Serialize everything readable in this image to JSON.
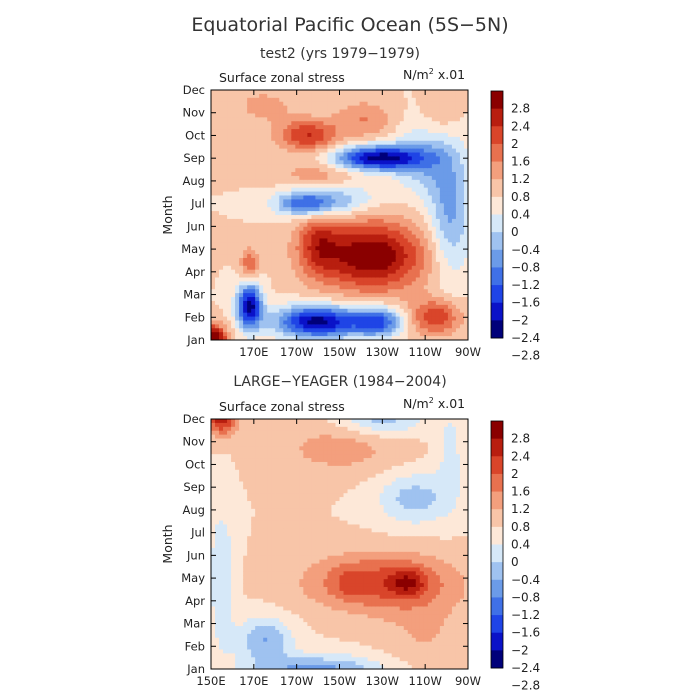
{
  "figure": {
    "title": "Equatorial Pacific Ocean (5S−5N)"
  },
  "chart_data": [
    {
      "type": "heatmap",
      "title": "test2 (yrs 1979−1979)",
      "variable_label": "Surface zonal stress",
      "units_prefix": "N/m",
      "units_exp": "2",
      "units_suffix": " x.01",
      "xlabel": "",
      "ylabel": "Month",
      "x_ticks": [
        "170E",
        "170W",
        "150W",
        "130W",
        "110W",
        "90W"
      ],
      "x_tick_values": [
        170,
        190,
        210,
        230,
        250,
        270
      ],
      "xlim": [
        150,
        270
      ],
      "y_ticks": [
        "Jan",
        "Feb",
        "Mar",
        "Apr",
        "May",
        "Jun",
        "Jul",
        "Aug",
        "Sep",
        "Oct",
        "Nov",
        "Dec"
      ],
      "ylim": [
        0,
        11
      ],
      "colorbar_levels": [
        "2.8",
        "2.4",
        "2",
        "1.6",
        "1.2",
        "0.8",
        "0.4",
        "0",
        "−0.4",
        "−0.8",
        "−1.2",
        "−1.6",
        "−2",
        "−2.4",
        "−2.8"
      ],
      "features": [
        {
          "lon": 150,
          "month": 0.0,
          "value": 3.0,
          "slon": 5,
          "smon": 0.45
        },
        {
          "lon": 168,
          "month": 1.5,
          "value": -3.0,
          "slon": 4,
          "smon": 0.7
        },
        {
          "lon": 200,
          "month": 0.8,
          "value": -3.0,
          "slon": 14,
          "smon": 0.5
        },
        {
          "lon": 228,
          "month": 0.8,
          "value": -2.0,
          "slon": 8,
          "smon": 0.45
        },
        {
          "lon": 255,
          "month": 1.0,
          "value": 1.6,
          "slon": 8,
          "smon": 0.55
        },
        {
          "lon": 168,
          "month": 3.3,
          "value": 1.2,
          "slon": 3,
          "smon": 0.5
        },
        {
          "lon": 225,
          "month": 3.7,
          "value": 2.4,
          "slon": 18,
          "smon": 1.1
        },
        {
          "lon": 200,
          "month": 4.3,
          "value": 1.2,
          "slon": 7,
          "smon": 1.0
        },
        {
          "lon": 195,
          "month": 6.0,
          "value": -2.2,
          "slon": 10,
          "smon": 0.4
        },
        {
          "lon": 215,
          "month": 6.2,
          "value": -0.8,
          "slon": 10,
          "smon": 0.5
        },
        {
          "lon": 262,
          "month": 5.5,
          "value": -1.3,
          "slon": 7,
          "smon": 2.0
        },
        {
          "lon": 250,
          "month": 8.0,
          "value": -1.0,
          "slon": 10,
          "smon": 1.2
        },
        {
          "lon": 228,
          "month": 8.0,
          "value": -3.0,
          "slon": 14,
          "smon": 0.38
        },
        {
          "lon": 195,
          "month": 9.0,
          "value": 1.6,
          "slon": 10,
          "smon": 0.5
        },
        {
          "lon": 222,
          "month": 9.7,
          "value": 0.8,
          "slon": 10,
          "smon": 0.6
        },
        {
          "lon": 200,
          "month": 7.3,
          "value": 0.6,
          "slon": 14,
          "smon": 0.4
        },
        {
          "lon": 175,
          "month": 10.3,
          "value": 0.6,
          "slon": 10,
          "smon": 0.5
        },
        {
          "lon": 257,
          "month": 9.8,
          "value": 0.5,
          "slon": 7,
          "smon": 0.8
        }
      ]
    },
    {
      "type": "heatmap",
      "title": "LARGE−YEAGER (1984−2004)",
      "variable_label": "Surface zonal stress",
      "units_prefix": "N/m",
      "units_exp": "2",
      "units_suffix": " x.01",
      "xlabel": "",
      "ylabel": "Month",
      "x_ticks": [
        "150E",
        "170E",
        "170W",
        "150W",
        "130W",
        "110W",
        "90W"
      ],
      "x_tick_values": [
        150,
        170,
        190,
        210,
        230,
        250,
        270
      ],
      "xlim": [
        150,
        270
      ],
      "y_ticks": [
        "Jan",
        "Feb",
        "Mar",
        "Apr",
        "May",
        "Jun",
        "Jul",
        "Aug",
        "Sep",
        "Oct",
        "Nov",
        "Dec"
      ],
      "ylim": [
        0,
        11
      ],
      "colorbar_levels": [
        "2.8",
        "2.4",
        "2",
        "1.6",
        "1.2",
        "0.8",
        "0.4",
        "0",
        "−0.4",
        "−0.8",
        "−1.2",
        "−1.6",
        "−2",
        "−2.4",
        "−2.8"
      ],
      "features": [
        {
          "lon": 155,
          "month": 11.0,
          "value": 1.8,
          "slon": 5,
          "smon": 0.5
        },
        {
          "lon": 230,
          "month": 11.0,
          "value": -1.0,
          "slon": 14,
          "smon": 0.5
        },
        {
          "lon": 230,
          "month": 3.8,
          "value": 1.4,
          "slon": 24,
          "smon": 0.9
        },
        {
          "lon": 242,
          "month": 3.8,
          "value": 0.9,
          "slon": 6,
          "smon": 0.45
        },
        {
          "lon": 215,
          "month": 3.8,
          "value": 0.4,
          "slon": 6,
          "smon": 0.5
        },
        {
          "lon": 210,
          "month": 9.7,
          "value": 0.6,
          "slon": 20,
          "smon": 0.8
        },
        {
          "lon": 245,
          "month": 7.5,
          "value": -1.0,
          "slon": 12,
          "smon": 0.8
        },
        {
          "lon": 200,
          "month": -0.1,
          "value": -1.4,
          "slon": 22,
          "smon": 0.5
        },
        {
          "lon": 175,
          "month": 1.3,
          "value": -1.2,
          "slon": 9,
          "smon": 0.7
        },
        {
          "lon": 155,
          "month": 4.0,
          "value": -0.8,
          "slon": 4,
          "smon": 2.2
        },
        {
          "lon": 262,
          "month": 9.5,
          "value": -0.5,
          "slon": 5,
          "smon": 1.5
        },
        {
          "lon": 250,
          "month": 1.5,
          "value": 0.4,
          "slon": 14,
          "smon": 1.2
        }
      ]
    }
  ]
}
